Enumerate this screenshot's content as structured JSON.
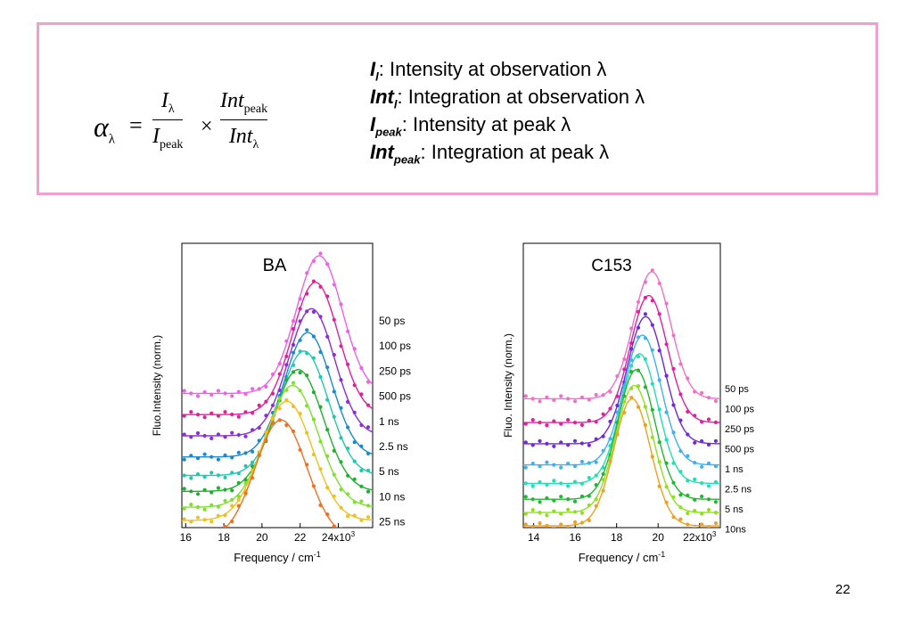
{
  "formula": {
    "alpha": "α",
    "alpha_sub": "λ",
    "equals": "=",
    "times": "×",
    "num1": "I",
    "num1_sub": "λ",
    "den1": "I",
    "den1_sub": "peak",
    "num2": "Int",
    "num2_sub": "peak",
    "den2": "Int",
    "den2_sub": "λ"
  },
  "definitions": [
    {
      "symbol": "I",
      "sub": "l",
      "text": ":  Intensity at observation  λ"
    },
    {
      "symbol": "Int",
      "sub": "l",
      "text": ":  Integration at observation  λ"
    },
    {
      "symbol": "I",
      "sub": "peak",
      "text": ":  Intensity at peak  λ"
    },
    {
      "symbol": "Int",
      "sub": "peak",
      "text": ":  Integration at peak λ"
    }
  ],
  "page_number": "22",
  "chart_data": [
    {
      "type": "line",
      "title": "BA",
      "xlabel": "Frequency / cm",
      "xlabel_sup": "-1",
      "ylabel": "Fluo.Intensity (norm.)",
      "xlim": [
        15800,
        25800
      ],
      "x_ticks": [
        "16",
        "18",
        "20",
        "22",
        "24x10"
      ],
      "x_tick_sup": "3",
      "x_tick_values": [
        16000,
        18000,
        20000,
        22000,
        24000
      ],
      "grid": false,
      "series": [
        {
          "name": "50 ps",
          "color": "#f060e8",
          "peak_x": 23000,
          "peak_y": 0.0,
          "baseline": 0.52,
          "width": 1700
        },
        {
          "name": "100 ps",
          "color": "#e0209a",
          "peak_x": 22800,
          "peak_y": 0.1,
          "baseline": 0.6,
          "width": 1700
        },
        {
          "name": "250 ps",
          "color": "#8a2ed8",
          "peak_x": 22600,
          "peak_y": 0.2,
          "baseline": 0.68,
          "width": 1700
        },
        {
          "name": "500 ps",
          "color": "#1a8ad0",
          "peak_x": 22400,
          "peak_y": 0.29,
          "baseline": 0.76,
          "width": 1750
        },
        {
          "name": "1 ns",
          "color": "#20c8b0",
          "peak_x": 22200,
          "peak_y": 0.36,
          "baseline": 0.83,
          "width": 1800
        },
        {
          "name": "2.5 ns",
          "color": "#20b030",
          "peak_x": 21900,
          "peak_y": 0.43,
          "baseline": 0.89,
          "width": 1850
        },
        {
          "name": "5 ns",
          "color": "#80e030",
          "peak_x": 21600,
          "peak_y": 0.49,
          "baseline": 0.95,
          "width": 1900
        },
        {
          "name": "10 ns",
          "color": "#f0c020",
          "peak_x": 21300,
          "peak_y": 0.55,
          "baseline": 1.0,
          "width": 1900
        },
        {
          "name": "25 ns",
          "color": "#f07020",
          "peak_x": 21000,
          "peak_y": 0.62,
          "baseline": 1.07,
          "width": 1900
        }
      ]
    },
    {
      "type": "line",
      "title": "C153",
      "xlabel": "Frequency / cm",
      "xlabel_sup": "-1",
      "ylabel": "Fluo. Intensity (norm.)",
      "xlim": [
        13500,
        23000
      ],
      "x_ticks": [
        "14",
        "16",
        "18",
        "20",
        "22x10"
      ],
      "x_tick_sup": "3",
      "x_tick_values": [
        14000,
        16000,
        18000,
        20000,
        22000
      ],
      "grid": false,
      "series": [
        {
          "name": "50 ps",
          "color": "#f070c8",
          "peak_x": 19700,
          "peak_y": 0.06,
          "baseline": 0.54,
          "width": 1250
        },
        {
          "name": "100 ps",
          "color": "#e020a0",
          "peak_x": 19550,
          "peak_y": 0.15,
          "baseline": 0.63,
          "width": 1250
        },
        {
          "name": "250 ps",
          "color": "#7028d8",
          "peak_x": 19400,
          "peak_y": 0.23,
          "baseline": 0.71,
          "width": 1250
        },
        {
          "name": "500 ps",
          "color": "#40b0f0",
          "peak_x": 19250,
          "peak_y": 0.3,
          "baseline": 0.79,
          "width": 1250
        },
        {
          "name": "1 ns",
          "color": "#20e0b0",
          "peak_x": 19100,
          "peak_y": 0.37,
          "baseline": 0.86,
          "width": 1250
        },
        {
          "name": "2.5 ns",
          "color": "#20b830",
          "peak_x": 18950,
          "peak_y": 0.43,
          "baseline": 0.92,
          "width": 1250
        },
        {
          "name": "5 ns",
          "color": "#90e020",
          "peak_x": 18850,
          "peak_y": 0.49,
          "baseline": 0.97,
          "width": 1250
        },
        {
          "name": "10ns",
          "color": "#f0a020",
          "peak_x": 18750,
          "peak_y": 0.54,
          "baseline": 1.02,
          "width": 1250
        }
      ]
    }
  ]
}
